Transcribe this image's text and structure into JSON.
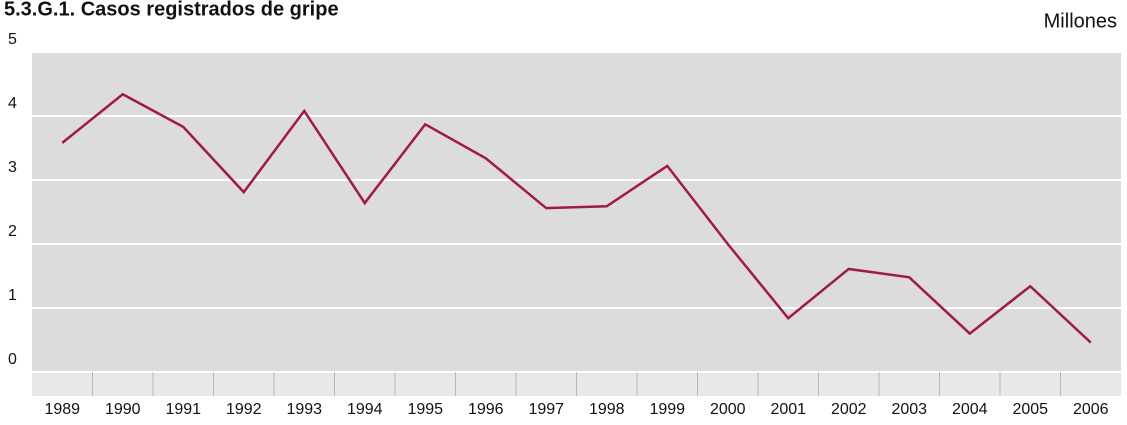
{
  "chart_data": {
    "type": "line",
    "title": "5.3.G.1. Casos registrados de gripe",
    "unit_label": "Millones",
    "categories": [
      "1989",
      "1990",
      "1991",
      "1992",
      "1993",
      "1994",
      "1995",
      "1996",
      "1997",
      "1998",
      "1999",
      "2000",
      "2001",
      "2002",
      "2003",
      "2004",
      "2005",
      "2006"
    ],
    "series": [
      {
        "name": "Casos registrados de gripe",
        "color": "#a31a3f",
        "values": [
          3.58,
          4.34,
          3.83,
          2.81,
          4.08,
          2.64,
          3.87,
          3.34,
          2.56,
          2.59,
          3.22,
          2.0,
          0.84,
          1.61,
          1.48,
          0.6,
          1.34,
          0.46
        ]
      }
    ],
    "ylim": [
      0,
      5
    ],
    "yticks": [
      0,
      1,
      2,
      3,
      4,
      5
    ],
    "grid": true
  }
}
